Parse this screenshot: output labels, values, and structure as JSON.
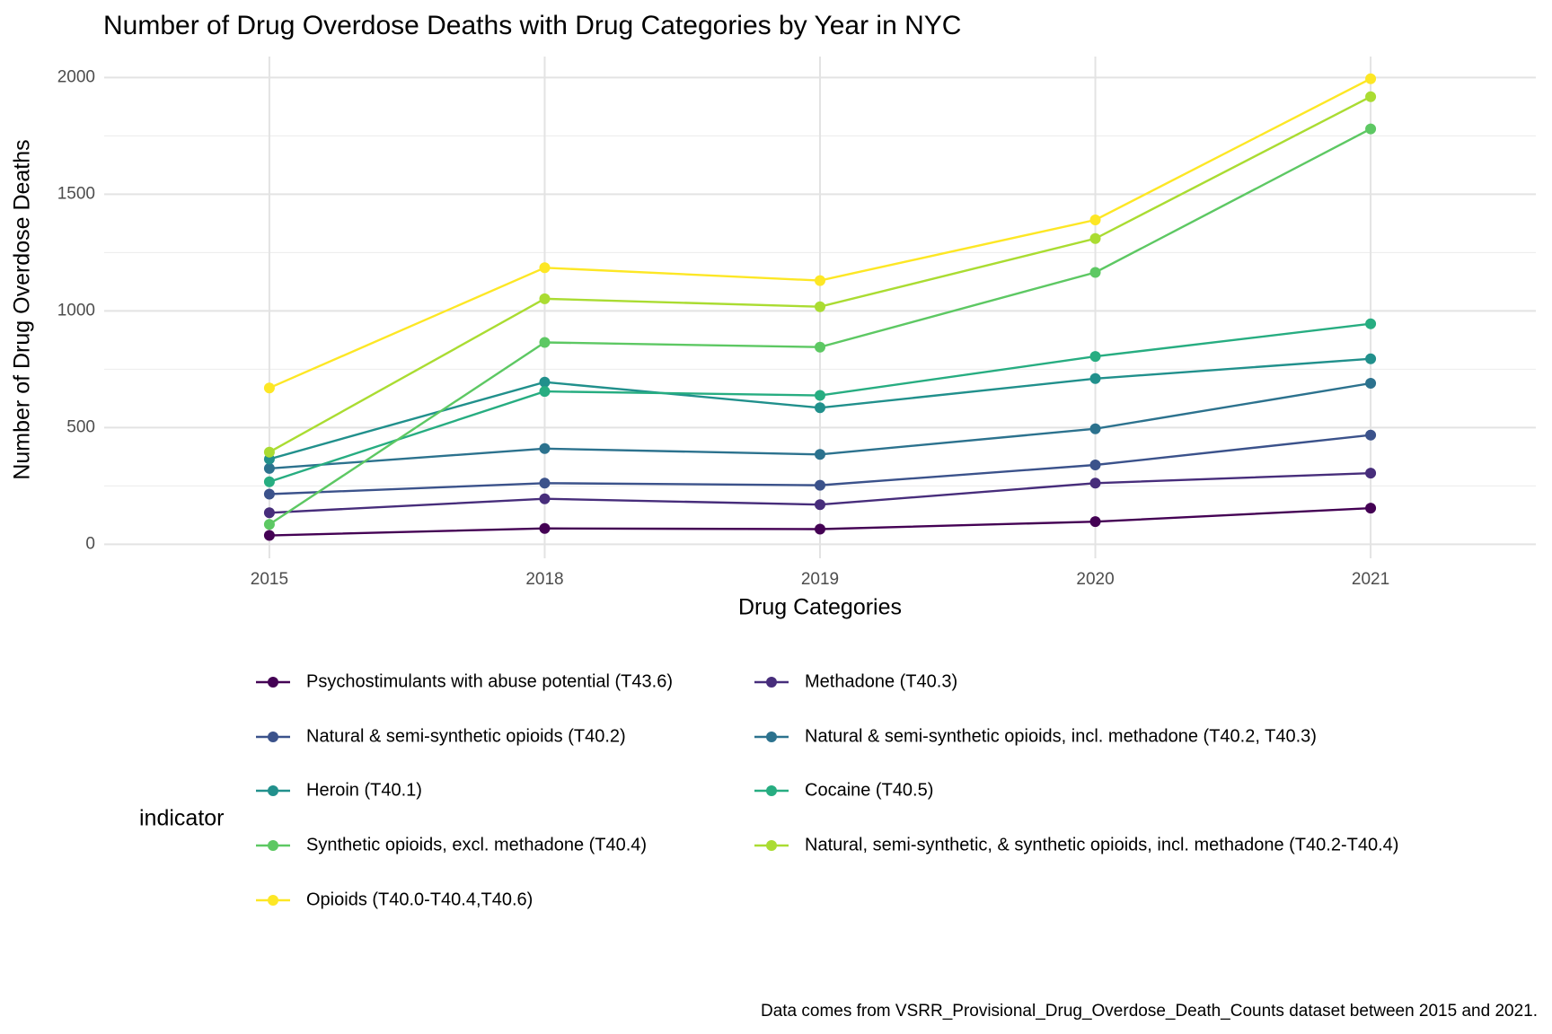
{
  "chart_data": {
    "type": "line",
    "title": "Number of Drug Overdose Deaths with Drug Categories by Year in NYC",
    "x_label": "Drug Categories",
    "y_label": "Number of Drug Overdose Deaths",
    "caption": "Data comes from VSRR_Provisional_Drug_Overdose_Death_Counts dataset between 2015 and 2021.",
    "legend_title": "indicator",
    "legend_position": "bottom",
    "grid": true,
    "categories": [
      "2015",
      "2018",
      "2019",
      "2020",
      "2021"
    ],
    "ylim": [
      -60,
      2090
    ],
    "yticks": [
      0,
      500,
      1000,
      1500,
      2000
    ],
    "series": [
      {
        "name": "Psychostimulants with abuse potential (T43.6)",
        "color": "#440154",
        "values": [
          38,
          68,
          65,
          97,
          155
        ]
      },
      {
        "name": "Methadone (T40.3)",
        "color": "#472D7B",
        "values": [
          135,
          195,
          170,
          262,
          305
        ]
      },
      {
        "name": "Natural & semi-synthetic opioids (T40.2)",
        "color": "#3B528B",
        "values": [
          215,
          262,
          253,
          340,
          468
        ]
      },
      {
        "name": "Natural & semi-synthetic opioids, incl. methadone (T40.2, T40.3)",
        "color": "#2C728E",
        "values": [
          325,
          410,
          385,
          495,
          690
        ]
      },
      {
        "name": "Heroin (T40.1)",
        "color": "#21908C",
        "values": [
          365,
          695,
          585,
          710,
          795
        ]
      },
      {
        "name": "Cocaine (T40.5)",
        "color": "#27AD81",
        "values": [
          268,
          655,
          638,
          805,
          945
        ]
      },
      {
        "name": "Synthetic opioids, excl. methadone (T40.4)",
        "color": "#5DC863",
        "values": [
          85,
          865,
          845,
          1165,
          1780
        ]
      },
      {
        "name": "Natural, semi-synthetic, & synthetic opioids, incl. methadone (T40.2-T40.4)",
        "color": "#AADC32",
        "values": [
          395,
          1052,
          1018,
          1310,
          1918
        ]
      },
      {
        "name": "Opioids (T40.0-T40.4,T40.6)",
        "color": "#FDE725",
        "values": [
          670,
          1185,
          1130,
          1390,
          1995
        ]
      }
    ]
  }
}
